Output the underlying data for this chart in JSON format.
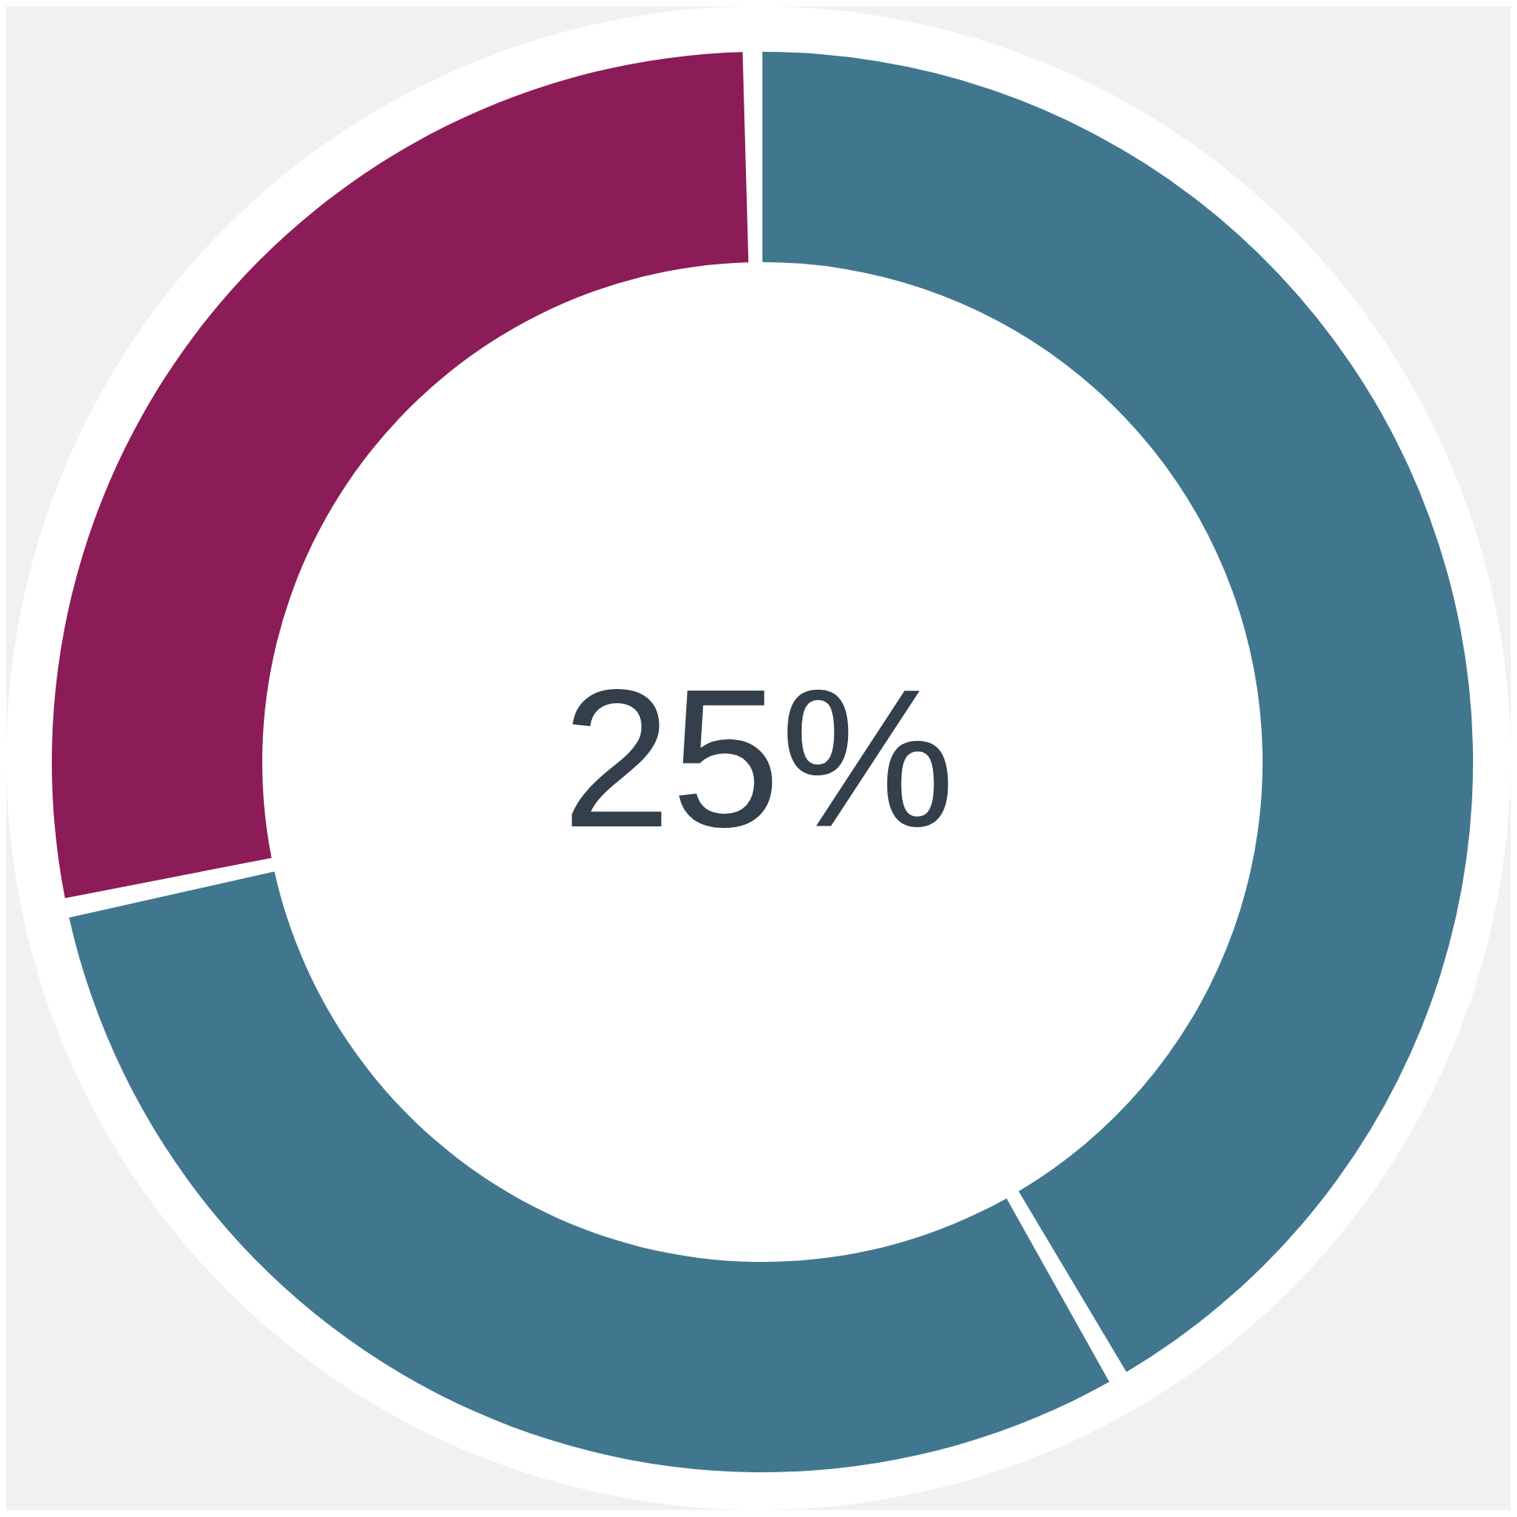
{
  "chart_data": {
    "type": "donut",
    "categories": [
      null,
      null,
      null
    ],
    "values": [
      42,
      30,
      28
    ],
    "colors": [
      "#41768f",
      "#41768f",
      "#8b1c58"
    ],
    "annotations": [
      "25%"
    ],
    "legend": false
  }
}
